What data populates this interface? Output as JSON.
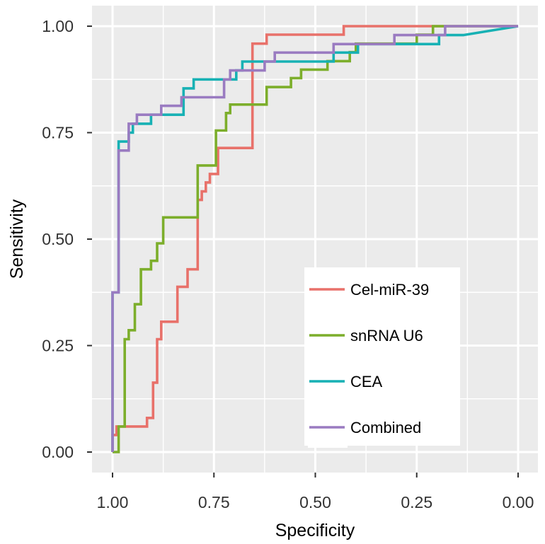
{
  "chart_data": {
    "type": "line",
    "subtype": "roc-curve",
    "title": "",
    "xlabel": "Specificity",
    "ylabel": "Sensitivity",
    "xlim": [
      1.0,
      0.0
    ],
    "ylim": [
      0.0,
      1.0
    ],
    "x_reversed": true,
    "x_ticks": [
      1.0,
      0.75,
      0.5,
      0.25,
      0.0
    ],
    "x_tick_labels": [
      "1.00",
      "0.75",
      "0.50",
      "0.25",
      "0.00"
    ],
    "y_ticks": [
      0.0,
      0.25,
      0.5,
      0.75,
      1.0
    ],
    "y_tick_labels": [
      "0.00",
      "0.25",
      "0.50",
      "0.75",
      "1.00"
    ],
    "grid": true,
    "legend_position": "bottom-right",
    "series": [
      {
        "name": "Cel-miR-39",
        "color": "#E8716A",
        "points": [
          [
            1.0,
            0.0
          ],
          [
            1.0,
            0.04
          ],
          [
            0.99,
            0.04
          ],
          [
            0.99,
            0.06
          ],
          [
            0.915,
            0.06
          ],
          [
            0.915,
            0.08
          ],
          [
            0.9,
            0.08
          ],
          [
            0.9,
            0.163
          ],
          [
            0.89,
            0.163
          ],
          [
            0.89,
            0.265
          ],
          [
            0.88,
            0.265
          ],
          [
            0.88,
            0.306
          ],
          [
            0.84,
            0.306
          ],
          [
            0.84,
            0.388
          ],
          [
            0.815,
            0.388
          ],
          [
            0.815,
            0.429
          ],
          [
            0.79,
            0.429
          ],
          [
            0.79,
            0.592
          ],
          [
            0.78,
            0.592
          ],
          [
            0.78,
            0.612
          ],
          [
            0.77,
            0.612
          ],
          [
            0.77,
            0.633
          ],
          [
            0.76,
            0.633
          ],
          [
            0.76,
            0.653
          ],
          [
            0.74,
            0.653
          ],
          [
            0.74,
            0.714
          ],
          [
            0.71,
            0.714
          ],
          [
            0.655,
            0.714
          ],
          [
            0.655,
            0.959
          ],
          [
            0.62,
            0.959
          ],
          [
            0.62,
            0.98
          ],
          [
            0.43,
            0.98
          ],
          [
            0.43,
            1.0
          ],
          [
            0.0,
            1.0
          ]
        ]
      },
      {
        "name": "snRNA U6",
        "color": "#7CAE2B",
        "points": [
          [
            1.0,
            0.0
          ],
          [
            0.985,
            0.0
          ],
          [
            0.985,
            0.06
          ],
          [
            0.97,
            0.06
          ],
          [
            0.97,
            0.265
          ],
          [
            0.96,
            0.265
          ],
          [
            0.96,
            0.286
          ],
          [
            0.945,
            0.286
          ],
          [
            0.945,
            0.347
          ],
          [
            0.93,
            0.347
          ],
          [
            0.93,
            0.429
          ],
          [
            0.905,
            0.429
          ],
          [
            0.905,
            0.449
          ],
          [
            0.89,
            0.449
          ],
          [
            0.89,
            0.49
          ],
          [
            0.875,
            0.49
          ],
          [
            0.875,
            0.551
          ],
          [
            0.79,
            0.551
          ],
          [
            0.79,
            0.673
          ],
          [
            0.745,
            0.673
          ],
          [
            0.745,
            0.755
          ],
          [
            0.72,
            0.755
          ],
          [
            0.72,
            0.796
          ],
          [
            0.71,
            0.796
          ],
          [
            0.71,
            0.816
          ],
          [
            0.62,
            0.816
          ],
          [
            0.62,
            0.857
          ],
          [
            0.56,
            0.857
          ],
          [
            0.56,
            0.878
          ],
          [
            0.535,
            0.878
          ],
          [
            0.535,
            0.898
          ],
          [
            0.47,
            0.898
          ],
          [
            0.47,
            0.918
          ],
          [
            0.415,
            0.918
          ],
          [
            0.415,
            0.939
          ],
          [
            0.4,
            0.939
          ],
          [
            0.4,
            0.959
          ],
          [
            0.25,
            0.959
          ],
          [
            0.25,
            0.98
          ],
          [
            0.21,
            0.98
          ],
          [
            0.21,
            1.0
          ],
          [
            0.0,
            1.0
          ]
        ]
      },
      {
        "name": "CEA",
        "color": "#17B1B4",
        "points": [
          [
            1.0,
            0.0
          ],
          [
            1.0,
            0.375
          ],
          [
            0.985,
            0.375
          ],
          [
            0.985,
            0.729
          ],
          [
            0.96,
            0.729
          ],
          [
            0.96,
            0.75
          ],
          [
            0.95,
            0.75
          ],
          [
            0.95,
            0.771
          ],
          [
            0.905,
            0.771
          ],
          [
            0.905,
            0.792
          ],
          [
            0.825,
            0.792
          ],
          [
            0.825,
            0.854
          ],
          [
            0.8,
            0.854
          ],
          [
            0.8,
            0.875
          ],
          [
            0.695,
            0.875
          ],
          [
            0.695,
            0.896
          ],
          [
            0.68,
            0.896
          ],
          [
            0.68,
            0.917
          ],
          [
            0.455,
            0.917
          ],
          [
            0.455,
            0.938
          ],
          [
            0.395,
            0.938
          ],
          [
            0.395,
            0.958
          ],
          [
            0.195,
            0.958
          ],
          [
            0.195,
            0.979
          ],
          [
            0.135,
            0.979
          ],
          [
            0.0,
            1.0
          ]
        ]
      },
      {
        "name": "Combined",
        "color": "#9A7BC1",
        "points": [
          [
            1.0,
            0.0
          ],
          [
            1.0,
            0.375
          ],
          [
            0.985,
            0.375
          ],
          [
            0.985,
            0.708
          ],
          [
            0.96,
            0.708
          ],
          [
            0.96,
            0.771
          ],
          [
            0.94,
            0.771
          ],
          [
            0.94,
            0.792
          ],
          [
            0.88,
            0.792
          ],
          [
            0.88,
            0.813
          ],
          [
            0.83,
            0.813
          ],
          [
            0.83,
            0.833
          ],
          [
            0.725,
            0.833
          ],
          [
            0.725,
            0.875
          ],
          [
            0.71,
            0.875
          ],
          [
            0.71,
            0.896
          ],
          [
            0.625,
            0.896
          ],
          [
            0.625,
            0.917
          ],
          [
            0.6,
            0.917
          ],
          [
            0.6,
            0.938
          ],
          [
            0.455,
            0.938
          ],
          [
            0.455,
            0.958
          ],
          [
            0.305,
            0.958
          ],
          [
            0.305,
            0.979
          ],
          [
            0.18,
            0.979
          ],
          [
            0.18,
            1.0
          ],
          [
            0.0,
            1.0
          ]
        ]
      }
    ]
  }
}
